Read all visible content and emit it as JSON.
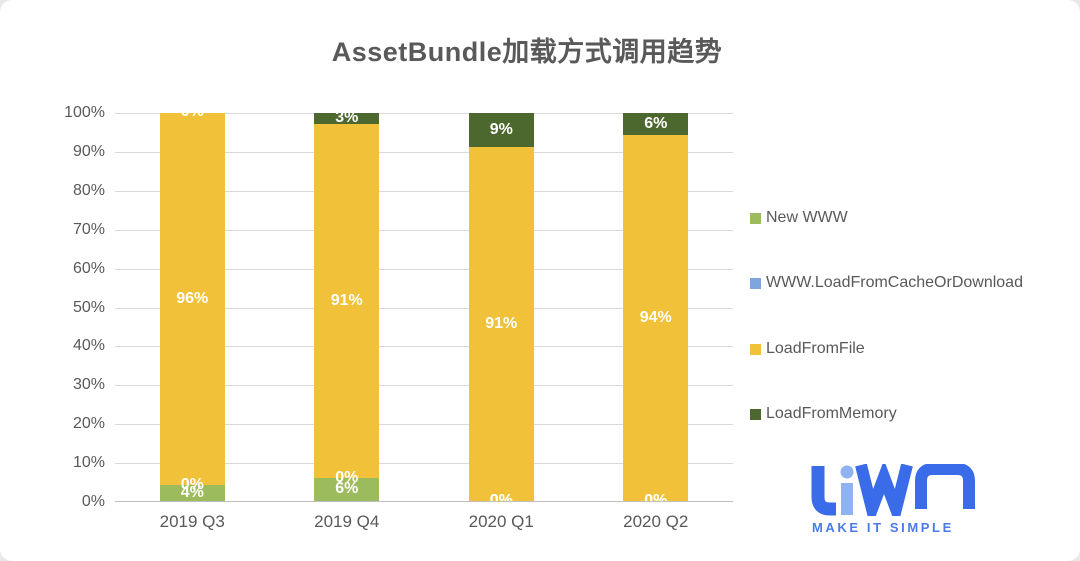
{
  "chart_data": {
    "type": "bar",
    "subtype": "stacked-100-percent-column",
    "title": "AssetBundle加载方式调用趋势",
    "categories": [
      "2019 Q3",
      "2019 Q4",
      "2020 Q1",
      "2020 Q2"
    ],
    "series": [
      {
        "name": "New WWW",
        "color": "#9cbb5c",
        "values": [
          4,
          6,
          0,
          0
        ]
      },
      {
        "name": "WWW.LoadFromCacheOrDownload",
        "color": "#7ea6dc",
        "values": [
          0,
          0,
          0,
          0
        ]
      },
      {
        "name": "LoadFromFile",
        "color": "#f0c139",
        "values": [
          96,
          91,
          91,
          94
        ]
      },
      {
        "name": "LoadFromMemory",
        "color": "#4d682f",
        "values": [
          0,
          3,
          9,
          6
        ]
      }
    ],
    "data_labels": [
      "4%",
      "0%",
      "96%",
      "0%",
      "6%",
      "0%",
      "91%",
      "3%",
      "0%",
      "0%",
      "91%",
      "9%",
      "0%",
      "0%",
      "94%",
      "6%"
    ],
    "data_label_color": "#ffffff",
    "y_axis": {
      "min": 0,
      "max": 100,
      "step": 10,
      "ticks": [
        "0%",
        "10%",
        "20%",
        "30%",
        "40%",
        "50%",
        "60%",
        "70%",
        "80%",
        "90%",
        "100%"
      ]
    },
    "grid": true,
    "gridline_color": "#d9d9d9",
    "axis_line_color": "#bfbfbf",
    "text_color": "#595959",
    "legend_position": "right"
  },
  "logo": {
    "wordmark": "LiWA",
    "tagline": "MAKE IT SIMPLE",
    "primary_color": "#3a6be8",
    "light_color": "#8fb3f0",
    "tagline_color": "#4a7bec"
  }
}
